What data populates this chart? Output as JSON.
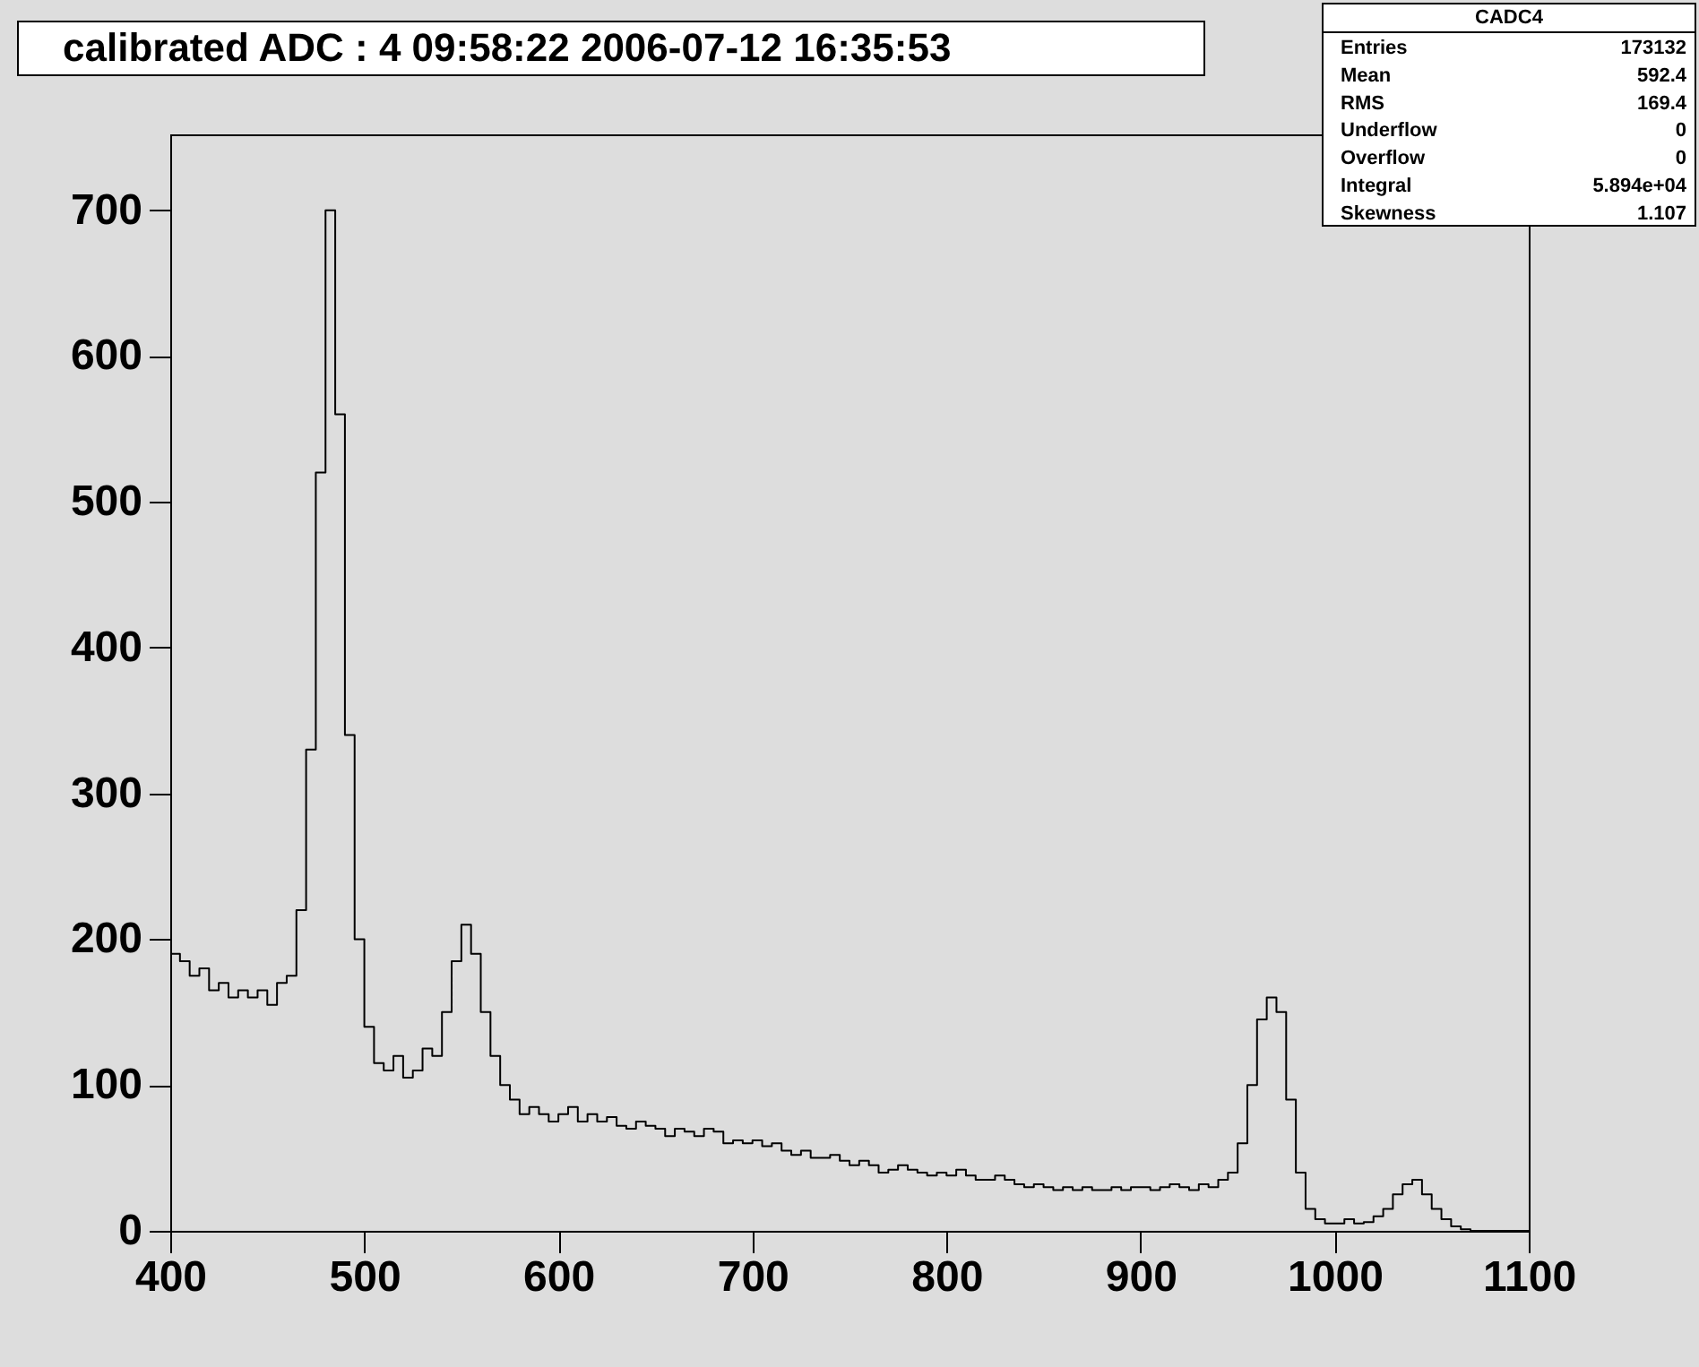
{
  "chart_data": {
    "type": "histogram",
    "title": "calibrated ADC :  4  09:58:22  2006-07-12  16:35:53",
    "annotations": [
      "CADC4",
      "Entries",
      "173132",
      "Mean",
      "592.4",
      "RMS",
      "169.4",
      "Underflow",
      "0",
      "Overflow",
      "0",
      "Integral",
      "5.894e+04",
      "Skewness",
      "1.107"
    ],
    "bins": [
      400,
      405,
      410,
      415,
      420,
      425,
      430,
      435,
      440,
      445,
      450,
      455,
      460,
      465,
      470,
      475,
      480,
      485,
      490,
      495,
      500,
      505,
      510,
      515,
      520,
      525,
      530,
      535,
      540,
      545,
      550,
      555,
      560,
      565,
      570,
      575,
      580,
      585,
      590,
      595,
      600,
      605,
      610,
      615,
      620,
      625,
      630,
      635,
      640,
      645,
      650,
      655,
      660,
      665,
      670,
      675,
      680,
      685,
      690,
      695,
      700,
      705,
      710,
      715,
      720,
      725,
      730,
      735,
      740,
      745,
      750,
      755,
      760,
      765,
      770,
      775,
      780,
      785,
      790,
      795,
      800,
      805,
      810,
      815,
      820,
      825,
      830,
      835,
      840,
      845,
      850,
      855,
      860,
      865,
      870,
      875,
      880,
      885,
      890,
      895,
      900,
      905,
      910,
      915,
      920,
      925,
      930,
      935,
      940,
      945,
      950,
      955,
      960,
      965,
      970,
      975,
      980,
      985,
      990,
      995,
      1000,
      1005,
      1010,
      1015,
      1020,
      1025,
      1030,
      1035,
      1040,
      1045,
      1050,
      1055,
      1060,
      1065,
      1070,
      1075,
      1080,
      1085,
      1090,
      1095,
      1100
    ],
    "values": [
      190,
      185,
      175,
      180,
      165,
      170,
      160,
      165,
      160,
      165,
      155,
      170,
      175,
      220,
      330,
      520,
      700,
      560,
      340,
      200,
      140,
      115,
      110,
      120,
      105,
      110,
      125,
      120,
      150,
      185,
      210,
      190,
      150,
      120,
      100,
      90,
      80,
      85,
      80,
      75,
      80,
      85,
      75,
      80,
      75,
      78,
      72,
      70,
      75,
      72,
      70,
      65,
      70,
      68,
      65,
      70,
      68,
      60,
      62,
      60,
      62,
      58,
      60,
      55,
      52,
      55,
      50,
      50,
      52,
      48,
      45,
      48,
      45,
      40,
      42,
      45,
      42,
      40,
      38,
      40,
      38,
      42,
      38,
      35,
      35,
      38,
      35,
      32,
      30,
      32,
      30,
      28,
      30,
      28,
      30,
      28,
      28,
      30,
      28,
      30,
      30,
      28,
      30,
      32,
      30,
      28,
      32,
      30,
      35,
      40,
      60,
      100,
      145,
      160,
      150,
      90,
      40,
      15,
      8,
      5,
      5,
      8,
      5,
      6,
      10,
      15,
      25,
      32,
      35,
      25,
      15,
      8,
      3,
      1,
      0,
      0,
      0,
      0,
      0,
      0
    ],
    "color": "#000000",
    "xlim": [
      400,
      1100
    ],
    "xticks": [
      400,
      500,
      600,
      700,
      800,
      900,
      1000,
      1100
    ],
    "ylim": [
      0,
      752
    ],
    "yticks": [
      0,
      100,
      200,
      300,
      400,
      500,
      600,
      700
    ],
    "grid": false
  }
}
